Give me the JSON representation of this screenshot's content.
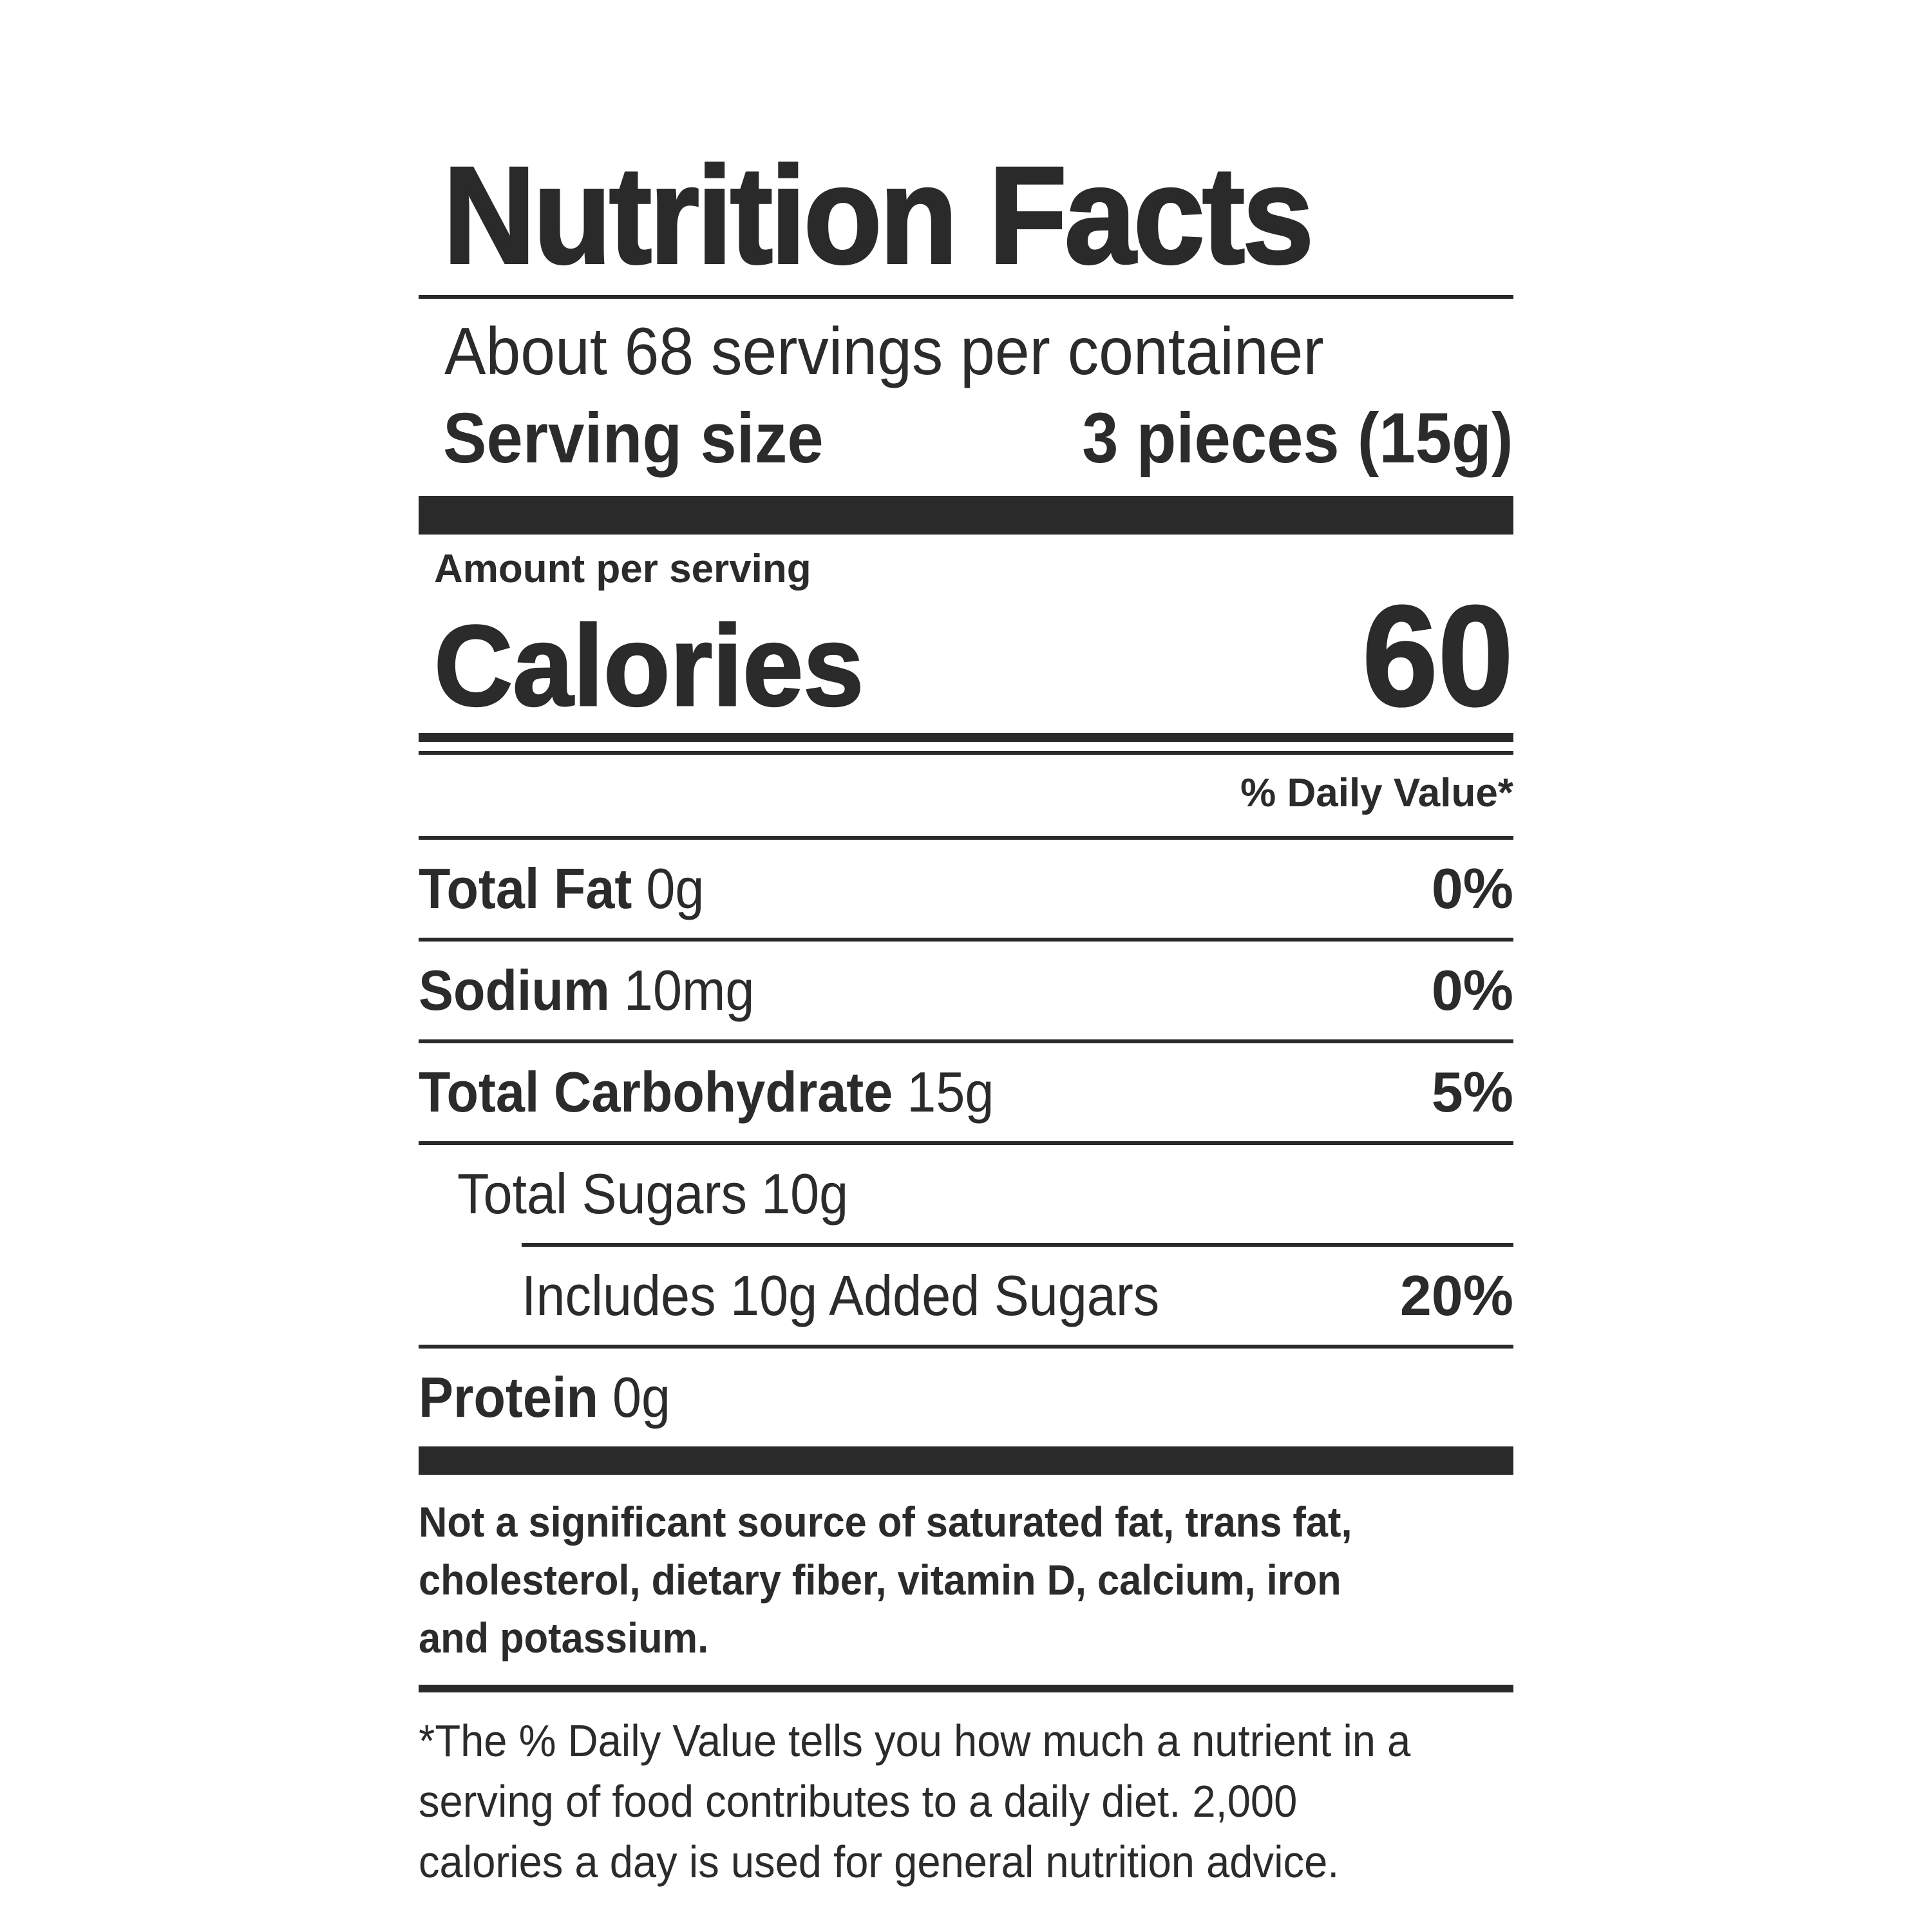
{
  "title": "Nutrition Facts",
  "servings_per_container": "About 68 servings per container",
  "serving_size": {
    "label": "Serving size",
    "value": "3 pieces (15g)"
  },
  "amount_per_serving": "Amount per serving",
  "calories": {
    "label": "Calories",
    "value": "60"
  },
  "daily_value_header": "% Daily Value*",
  "nutrients": [
    {
      "name": "Total Fat",
      "amount": "0g",
      "dv": "0%"
    },
    {
      "name": "Sodium",
      "amount": "10mg",
      "dv": "0%"
    },
    {
      "name": "Total Carbohydrate",
      "amount": "15g",
      "dv": "5%"
    },
    {
      "name": "Total Sugars",
      "amount": "10g",
      "dv": ""
    },
    {
      "name": "Includes 10g Added Sugars",
      "amount": "",
      "dv": "20%"
    },
    {
      "name": "Protein",
      "amount": "0g",
      "dv": ""
    }
  ],
  "not_significant_note": "Not a significant source of saturated fat, trans fat, cholesterol, dietary fiber, vitamin D, calcium, iron and potassium.",
  "daily_value_footnote": "*The % Daily Value tells you how much a nutrient in a serving of food contributes to a daily diet. 2,000 calories a day is used for general nutrition advice."
}
